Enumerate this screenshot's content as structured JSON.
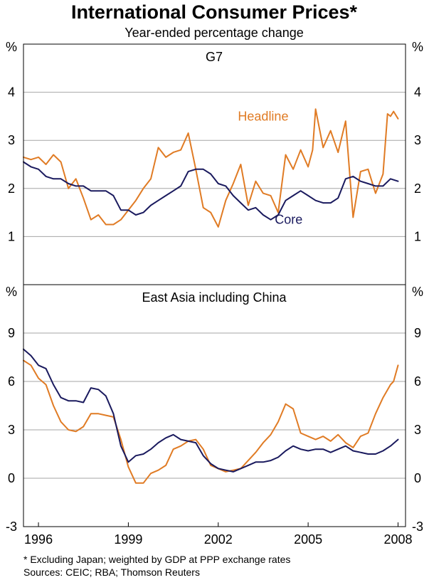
{
  "chart_data": {
    "type": "line",
    "title": "International Consumer Prices*",
    "subtitle": "Year-ended percentage change",
    "unit_label": "%",
    "x_range": [
      1995.5,
      2008.25
    ],
    "x_ticks": [
      {
        "label": "1996",
        "value": 1996
      },
      {
        "label": "1999",
        "value": 1999
      },
      {
        "label": "2002",
        "value": 2002
      },
      {
        "label": "2005",
        "value": 2005
      },
      {
        "label": "2008",
        "value": 2008
      }
    ],
    "footnote": "*   Excluding Japan; weighted by GDP at PPP exchange rates",
    "sources": "Sources: CEIC; RBA; Thomson Reuters",
    "colors": {
      "headline": "#E07B24",
      "core": "#1A1A5E",
      "grid": "#A6A6A6",
      "frame": "#000000"
    },
    "panels": [
      {
        "title": "G7",
        "y_range": [
          0,
          5
        ],
        "y_ticks": [
          {
            "label": "1",
            "value": 1
          },
          {
            "label": "2",
            "value": 2
          },
          {
            "label": "3",
            "value": 3
          },
          {
            "label": "4",
            "value": 4
          }
        ],
        "annotations": [
          {
            "text": "Headline",
            "series": "Headline",
            "x": 2003.5,
            "y": 3.5
          },
          {
            "text": "Core",
            "series": "Core",
            "x": 2004.35,
            "y": 1.35
          }
        ],
        "series": [
          {
            "name": "Headline",
            "x": [
              1995.5,
              1995.75,
              1996.0,
              1996.25,
              1996.5,
              1996.75,
              1997.0,
              1997.25,
              1997.5,
              1997.75,
              1998.0,
              1998.25,
              1998.5,
              1998.75,
              1999.0,
              1999.25,
              1999.5,
              1999.75,
              2000.0,
              2000.25,
              2000.5,
              2000.75,
              2001.0,
              2001.25,
              2001.5,
              2001.75,
              2002.0,
              2002.25,
              2002.5,
              2002.75,
              2003.0,
              2003.25,
              2003.5,
              2003.75,
              2004.0,
              2004.25,
              2004.5,
              2004.75,
              2005.0,
              2005.15,
              2005.25,
              2005.5,
              2005.75,
              2006.0,
              2006.25,
              2006.5,
              2006.75,
              2007.0,
              2007.25,
              2007.5,
              2007.65,
              2007.75,
              2007.85,
              2008.0
            ],
            "values": [
              2.65,
              2.6,
              2.65,
              2.5,
              2.7,
              2.55,
              2.0,
              2.2,
              1.8,
              1.35,
              1.45,
              1.25,
              1.25,
              1.35,
              1.55,
              1.75,
              2.0,
              2.2,
              2.85,
              2.65,
              2.75,
              2.8,
              3.15,
              2.4,
              1.6,
              1.5,
              1.2,
              1.75,
              2.1,
              2.5,
              1.65,
              2.15,
              1.9,
              1.85,
              1.5,
              2.7,
              2.4,
              2.8,
              2.45,
              2.8,
              3.65,
              2.85,
              3.2,
              2.75,
              3.4,
              1.4,
              2.35,
              2.4,
              1.9,
              2.3,
              3.55,
              3.5,
              3.6,
              3.45
            ]
          },
          {
            "name": "Core",
            "x": [
              1995.5,
              1995.75,
              1996.0,
              1996.25,
              1996.5,
              1996.75,
              1997.0,
              1997.25,
              1997.5,
              1997.75,
              1998.0,
              1998.25,
              1998.5,
              1998.75,
              1999.0,
              1999.25,
              1999.5,
              1999.75,
              2000.0,
              2000.25,
              2000.5,
              2000.75,
              2001.0,
              2001.25,
              2001.5,
              2001.75,
              2002.0,
              2002.25,
              2002.5,
              2002.75,
              2003.0,
              2003.25,
              2003.5,
              2003.75,
              2004.0,
              2004.25,
              2004.5,
              2004.75,
              2005.0,
              2005.25,
              2005.5,
              2005.75,
              2006.0,
              2006.25,
              2006.5,
              2006.75,
              2007.0,
              2007.25,
              2007.5,
              2007.75,
              2008.0
            ],
            "values": [
              2.55,
              2.45,
              2.4,
              2.25,
              2.2,
              2.2,
              2.1,
              2.05,
              2.05,
              1.95,
              1.95,
              1.95,
              1.85,
              1.55,
              1.55,
              1.45,
              1.5,
              1.65,
              1.75,
              1.85,
              1.95,
              2.05,
              2.35,
              2.4,
              2.4,
              2.3,
              2.1,
              2.05,
              1.85,
              1.7,
              1.55,
              1.6,
              1.45,
              1.35,
              1.45,
              1.75,
              1.85,
              1.95,
              1.85,
              1.75,
              1.7,
              1.7,
              1.8,
              2.2,
              2.25,
              2.15,
              2.1,
              2.05,
              2.05,
              2.2,
              2.15
            ]
          }
        ]
      },
      {
        "title": "East Asia including China",
        "y_range": [
          -3,
          12
        ],
        "y_ticks": [
          {
            "label": "-3",
            "value": -3
          },
          {
            "label": "0",
            "value": 0
          },
          {
            "label": "3",
            "value": 3
          },
          {
            "label": "6",
            "value": 6
          },
          {
            "label": "9",
            "value": 9
          }
        ],
        "annotations": [],
        "series": [
          {
            "name": "Headline",
            "x": [
              1995.5,
              1995.75,
              1996.0,
              1996.25,
              1996.5,
              1996.75,
              1997.0,
              1997.25,
              1997.5,
              1997.75,
              1998.0,
              1998.25,
              1998.5,
              1998.75,
              1999.0,
              1999.25,
              1999.5,
              1999.75,
              2000.0,
              2000.25,
              2000.5,
              2000.75,
              2001.0,
              2001.25,
              2001.5,
              2001.75,
              2002.0,
              2002.25,
              2002.5,
              2002.75,
              2003.0,
              2003.25,
              2003.5,
              2003.75,
              2004.0,
              2004.25,
              2004.5,
              2004.75,
              2005.0,
              2005.25,
              2005.5,
              2005.75,
              2006.0,
              2006.25,
              2006.5,
              2006.75,
              2007.0,
              2007.25,
              2007.5,
              2007.75,
              2007.85,
              2008.0
            ],
            "values": [
              7.3,
              7.0,
              6.2,
              5.8,
              4.5,
              3.5,
              3.0,
              2.9,
              3.2,
              4.0,
              4.0,
              3.9,
              3.8,
              2.4,
              0.7,
              -0.3,
              -0.3,
              0.3,
              0.5,
              0.8,
              1.8,
              2.0,
              2.3,
              2.4,
              1.8,
              0.8,
              0.6,
              0.4,
              0.5,
              0.6,
              1.1,
              1.6,
              2.2,
              2.7,
              3.5,
              4.6,
              4.3,
              2.8,
              2.6,
              2.4,
              2.6,
              2.3,
              2.7,
              2.2,
              1.9,
              2.6,
              2.8,
              4.0,
              5.0,
              5.8,
              6.0,
              7.0
            ]
          },
          {
            "name": "Core",
            "x": [
              1995.5,
              1995.75,
              1996.0,
              1996.25,
              1996.5,
              1996.75,
              1997.0,
              1997.25,
              1997.5,
              1997.75,
              1998.0,
              1998.25,
              1998.5,
              1998.75,
              1999.0,
              1999.25,
              1999.5,
              1999.75,
              2000.0,
              2000.25,
              2000.5,
              2000.75,
              2001.0,
              2001.25,
              2001.5,
              2001.75,
              2002.0,
              2002.25,
              2002.5,
              2002.75,
              2003.0,
              2003.25,
              2003.5,
              2003.75,
              2004.0,
              2004.25,
              2004.5,
              2004.75,
              2005.0,
              2005.25,
              2005.5,
              2005.75,
              2006.0,
              2006.25,
              2006.5,
              2006.75,
              2007.0,
              2007.25,
              2007.5,
              2007.75,
              2008.0
            ],
            "values": [
              8.0,
              7.6,
              7.0,
              6.8,
              5.8,
              5.0,
              4.8,
              4.8,
              4.7,
              5.6,
              5.5,
              5.1,
              4.0,
              2.0,
              1.0,
              1.4,
              1.5,
              1.8,
              2.2,
              2.5,
              2.7,
              2.4,
              2.3,
              2.2,
              1.4,
              0.9,
              0.6,
              0.5,
              0.4,
              0.6,
              0.8,
              1.0,
              1.0,
              1.1,
              1.3,
              1.7,
              2.0,
              1.8,
              1.7,
              1.8,
              1.8,
              1.6,
              1.8,
              2.0,
              1.7,
              1.6,
              1.5,
              1.5,
              1.7,
              2.0,
              2.4
            ]
          }
        ]
      }
    ]
  }
}
